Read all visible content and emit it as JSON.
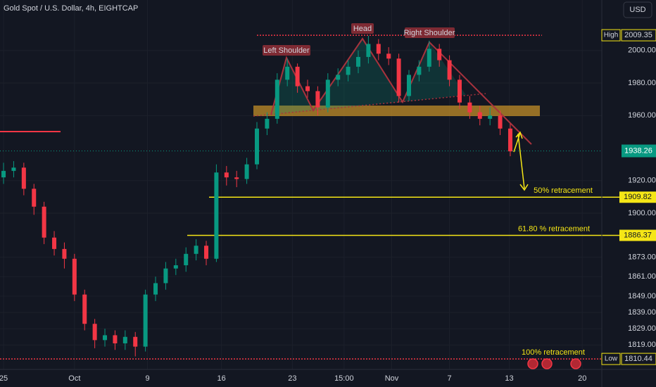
{
  "chart_data": {
    "type": "candlestick",
    "title": "Gold Spot / U.S. Dollar, 4h, EIGHTCAP",
    "currency": "USD",
    "up_color": "#089981",
    "down_color": "#f23645",
    "x": [
      0,
      1,
      2,
      3,
      4,
      5,
      6,
      7,
      8,
      9,
      10,
      11,
      12,
      13,
      14,
      15,
      16,
      17,
      18,
      19,
      20,
      21,
      22,
      23,
      24,
      25,
      26,
      27,
      28,
      29,
      30,
      31,
      32,
      33,
      34,
      35,
      36,
      37,
      38,
      39,
      40,
      41,
      42,
      43,
      44,
      45,
      46,
      47,
      48,
      49,
      50
    ],
    "open": [
      1922,
      1926,
      1928,
      1915,
      1904,
      1885,
      1878,
      1872,
      1850,
      1832,
      1822,
      1825,
      1820,
      1824,
      1818,
      1850,
      1857,
      1866,
      1868,
      1875,
      1880,
      1872,
      1925,
      1922,
      1921,
      1930,
      1952,
      1958,
      1982,
      1990,
      1978,
      1975,
      1965,
      1982,
      1985,
      1990,
      1996,
      2004,
      1998,
      1995,
      1972,
      1985,
      1990,
      2001,
      1994,
      1982,
      1968,
      1962,
      1958,
      1960,
      1952
    ],
    "high": [
      1931,
      1932,
      1931,
      1918,
      1907,
      1889,
      1882,
      1875,
      1853,
      1835,
      1829,
      1828,
      1828,
      1827,
      1853,
      1861,
      1870,
      1872,
      1879,
      1884,
      1883,
      1930,
      1929,
      1926,
      1934,
      1956,
      1962,
      1986,
      1995,
      1992,
      1982,
      1978,
      1986,
      1989,
      1994,
      2000,
      2009,
      2007,
      2002,
      1998,
      1988,
      1994,
      2006,
      2004,
      1997,
      1985,
      1972,
      1966,
      1965,
      1963,
      1955
    ],
    "low": [
      1918,
      1922,
      1911,
      1899,
      1881,
      1874,
      1866,
      1846,
      1828,
      1817,
      1818,
      1816,
      1816,
      1812,
      1815,
      1846,
      1853,
      1862,
      1864,
      1871,
      1868,
      1870,
      1917,
      1916,
      1918,
      1927,
      1948,
      1955,
      1978,
      1974,
      1971,
      1960,
      1962,
      1978,
      1981,
      1986,
      1992,
      1994,
      1991,
      1968,
      1969,
      1981,
      1987,
      1990,
      1978,
      1964,
      1958,
      1954,
      1954,
      1948,
      1935
    ],
    "close": [
      1926,
      1928,
      1915,
      1904,
      1885,
      1878,
      1872,
      1850,
      1832,
      1822,
      1825,
      1820,
      1824,
      1818,
      1850,
      1857,
      1866,
      1868,
      1875,
      1880,
      1872,
      1925,
      1922,
      1921,
      1930,
      1952,
      1958,
      1982,
      1990,
      1978,
      1975,
      1965,
      1982,
      1985,
      1990,
      1996,
      2004,
      1998,
      1995,
      1972,
      1985,
      1990,
      2001,
      1994,
      1982,
      1968,
      1962,
      1958,
      1960,
      1952,
      1938
    ],
    "xlim": [
      -0.35,
      59.03
    ],
    "xticks": [
      {
        "value": 0,
        "label": "25"
      },
      {
        "value": 7.0,
        "label": "Oct"
      },
      {
        "value": 14.2,
        "label": "9"
      },
      {
        "value": 21.5,
        "label": "16"
      },
      {
        "value": 28.5,
        "label": "23"
      },
      {
        "value": 33.6,
        "label": "15:00"
      },
      {
        "value": 38.3,
        "label": "Nov"
      },
      {
        "value": 44.0,
        "label": "7"
      },
      {
        "value": 49.9,
        "label": "13"
      },
      {
        "value": 57.1,
        "label": "20"
      }
    ],
    "ylim": [
      1804,
      2031
    ],
    "yticks": [
      {
        "value": 2000,
        "label": "2000.00"
      },
      {
        "value": 1980,
        "label": "1980.00"
      },
      {
        "value": 1960,
        "label": "1960.00"
      },
      {
        "value": 1920,
        "label": "1920.00"
      },
      {
        "value": 1900,
        "label": "1900.00"
      },
      {
        "value": 1873,
        "label": "1873.00"
      },
      {
        "value": 1861,
        "label": "1861.00"
      },
      {
        "value": 1849,
        "label": "1849.00"
      },
      {
        "value": 1839,
        "label": "1839.00"
      },
      {
        "value": 1829,
        "label": "1829.00"
      },
      {
        "value": 1819,
        "label": "1819.00"
      }
    ],
    "price_lines": [
      {
        "name": "High",
        "value": 2009.35,
        "color": "#f23645"
      },
      {
        "name": "Low",
        "value": 1810.44,
        "color": "#f23645"
      }
    ],
    "current_price": 1938.26,
    "retracements": [
      {
        "label": "50% retracement",
        "value": 1909.82,
        "color": "#f5e616"
      },
      {
        "label": "61.80 % retracement",
        "value": 1886.37,
        "color": "#f5e616"
      },
      {
        "label": "100% retracement",
        "value": 1810.44,
        "color": "#f5e616"
      }
    ],
    "annotations": [
      "Left Shoulder",
      "Head",
      "Right Shoulder"
    ],
    "grid": true
  }
}
